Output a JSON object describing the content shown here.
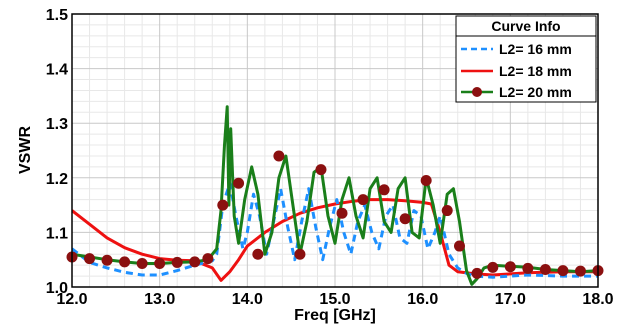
{
  "chart_data": {
    "type": "line",
    "title": "",
    "xlabel": "Freq [GHz]",
    "ylabel": "VSWR",
    "xlim": [
      12.0,
      18.0
    ],
    "ylim": [
      1.0,
      1.5
    ],
    "x_ticks": [
      "12.0",
      "13.0",
      "14.0",
      "15.0",
      "16.0",
      "17.0",
      "18.0"
    ],
    "y_ticks": [
      "1.0",
      "1.1",
      "1.2",
      "1.3",
      "1.4",
      "1.5"
    ],
    "grid": true,
    "legend": {
      "title": "Curve Info",
      "placement": "top-right"
    },
    "series": [
      {
        "name": "L2= 16 mm",
        "color": "#1e90ff",
        "style": "dashed",
        "x": [
          12.0,
          12.2,
          12.4,
          12.6,
          12.8,
          13.0,
          13.2,
          13.4,
          13.6,
          13.65,
          13.72,
          13.8,
          13.87,
          13.95,
          14.0,
          14.07,
          14.14,
          14.22,
          14.3,
          14.38,
          14.46,
          14.54,
          14.62,
          14.7,
          14.78,
          14.86,
          14.94,
          15.02,
          15.1,
          15.18,
          15.26,
          15.34,
          15.42,
          15.5,
          15.58,
          15.66,
          15.74,
          15.82,
          15.9,
          15.98,
          16.06,
          16.14,
          16.2,
          16.3,
          16.4,
          16.5,
          16.6,
          16.8,
          17.0,
          17.2,
          17.4,
          17.6,
          17.8,
          18.0
        ],
        "y": [
          1.07,
          1.045,
          1.035,
          1.027,
          1.022,
          1.022,
          1.03,
          1.04,
          1.048,
          1.06,
          1.15,
          1.19,
          1.13,
          1.07,
          1.1,
          1.17,
          1.13,
          1.06,
          1.12,
          1.18,
          1.11,
          1.05,
          1.12,
          1.18,
          1.11,
          1.05,
          1.11,
          1.16,
          1.1,
          1.06,
          1.12,
          1.15,
          1.1,
          1.07,
          1.13,
          1.15,
          1.09,
          1.08,
          1.14,
          1.13,
          1.07,
          1.1,
          1.13,
          1.06,
          1.035,
          1.025,
          1.02,
          1.018,
          1.02,
          1.022,
          1.021,
          1.02,
          1.02,
          1.02
        ]
      },
      {
        "name": "L2= 18 mm",
        "color": "#ee1111",
        "style": "solid",
        "x": [
          12.0,
          12.2,
          12.4,
          12.6,
          12.8,
          13.0,
          13.2,
          13.4,
          13.6,
          13.7,
          13.8,
          13.9,
          14.0,
          14.2,
          14.4,
          14.6,
          14.8,
          15.0,
          15.2,
          15.4,
          15.6,
          15.8,
          16.0,
          16.1,
          16.2,
          16.3,
          16.4,
          16.6,
          16.8,
          17.0,
          17.2,
          17.4,
          17.6,
          17.8,
          18.0
        ],
        "y": [
          1.14,
          1.115,
          1.09,
          1.072,
          1.06,
          1.052,
          1.049,
          1.048,
          1.035,
          1.012,
          1.028,
          1.05,
          1.075,
          1.1,
          1.12,
          1.135,
          1.145,
          1.152,
          1.157,
          1.16,
          1.16,
          1.158,
          1.155,
          1.152,
          1.1,
          1.04,
          1.028,
          1.024,
          1.022,
          1.024,
          1.026,
          1.027,
          1.028,
          1.028,
          1.028
        ]
      },
      {
        "name": "L2= 20 mm",
        "color": "#1a7f1a",
        "style": "solid-markers",
        "marker_color": "#8b1010",
        "x": [
          12.0,
          12.2,
          12.4,
          12.6,
          12.8,
          13.0,
          13.2,
          13.4,
          13.55,
          13.65,
          13.7,
          13.74,
          13.77,
          13.79,
          13.81,
          13.85,
          13.9,
          13.97,
          14.05,
          14.12,
          14.2,
          14.28,
          14.36,
          14.44,
          14.52,
          14.6,
          14.68,
          14.76,
          14.84,
          14.92,
          15.0,
          15.08,
          15.16,
          15.24,
          15.32,
          15.4,
          15.48,
          15.56,
          15.64,
          15.72,
          15.8,
          15.88,
          15.96,
          16.04,
          16.12,
          16.2,
          16.28,
          16.35,
          16.42,
          16.5,
          16.56,
          16.62,
          16.7,
          16.8,
          17.0,
          17.2,
          17.4,
          17.6,
          17.8,
          18.0
        ],
        "y": [
          1.06,
          1.055,
          1.05,
          1.046,
          1.043,
          1.043,
          1.045,
          1.046,
          1.05,
          1.07,
          1.14,
          1.26,
          1.33,
          1.15,
          1.29,
          1.13,
          1.08,
          1.16,
          1.22,
          1.17,
          1.06,
          1.1,
          1.2,
          1.24,
          1.15,
          1.06,
          1.12,
          1.21,
          1.22,
          1.13,
          1.08,
          1.16,
          1.2,
          1.13,
          1.09,
          1.18,
          1.2,
          1.12,
          1.1,
          1.18,
          1.2,
          1.1,
          1.09,
          1.2,
          1.15,
          1.08,
          1.17,
          1.18,
          1.12,
          1.03,
          1.005,
          1.015,
          1.035,
          1.04,
          1.038,
          1.036,
          1.032,
          1.03,
          1.028,
          1.03
        ]
      }
    ],
    "marker_points": {
      "x": [
        12.0,
        12.2,
        12.4,
        12.6,
        12.8,
        13.0,
        13.2,
        13.4,
        13.55,
        13.72,
        13.9,
        14.12,
        14.36,
        14.6,
        14.84,
        15.08,
        15.32,
        15.56,
        15.8,
        16.04,
        16.28,
        16.42,
        16.62,
        16.8,
        17.0,
        17.2,
        17.4,
        17.6,
        17.8,
        18.0
      ],
      "y": [
        1.055,
        1.052,
        1.049,
        1.046,
        1.043,
        1.043,
        1.045,
        1.046,
        1.052,
        1.15,
        1.19,
        1.06,
        1.24,
        1.06,
        1.215,
        1.135,
        1.16,
        1.178,
        1.125,
        1.195,
        1.14,
        1.075,
        1.025,
        1.036,
        1.037,
        1.034,
        1.032,
        1.03,
        1.029,
        1.03
      ]
    }
  }
}
